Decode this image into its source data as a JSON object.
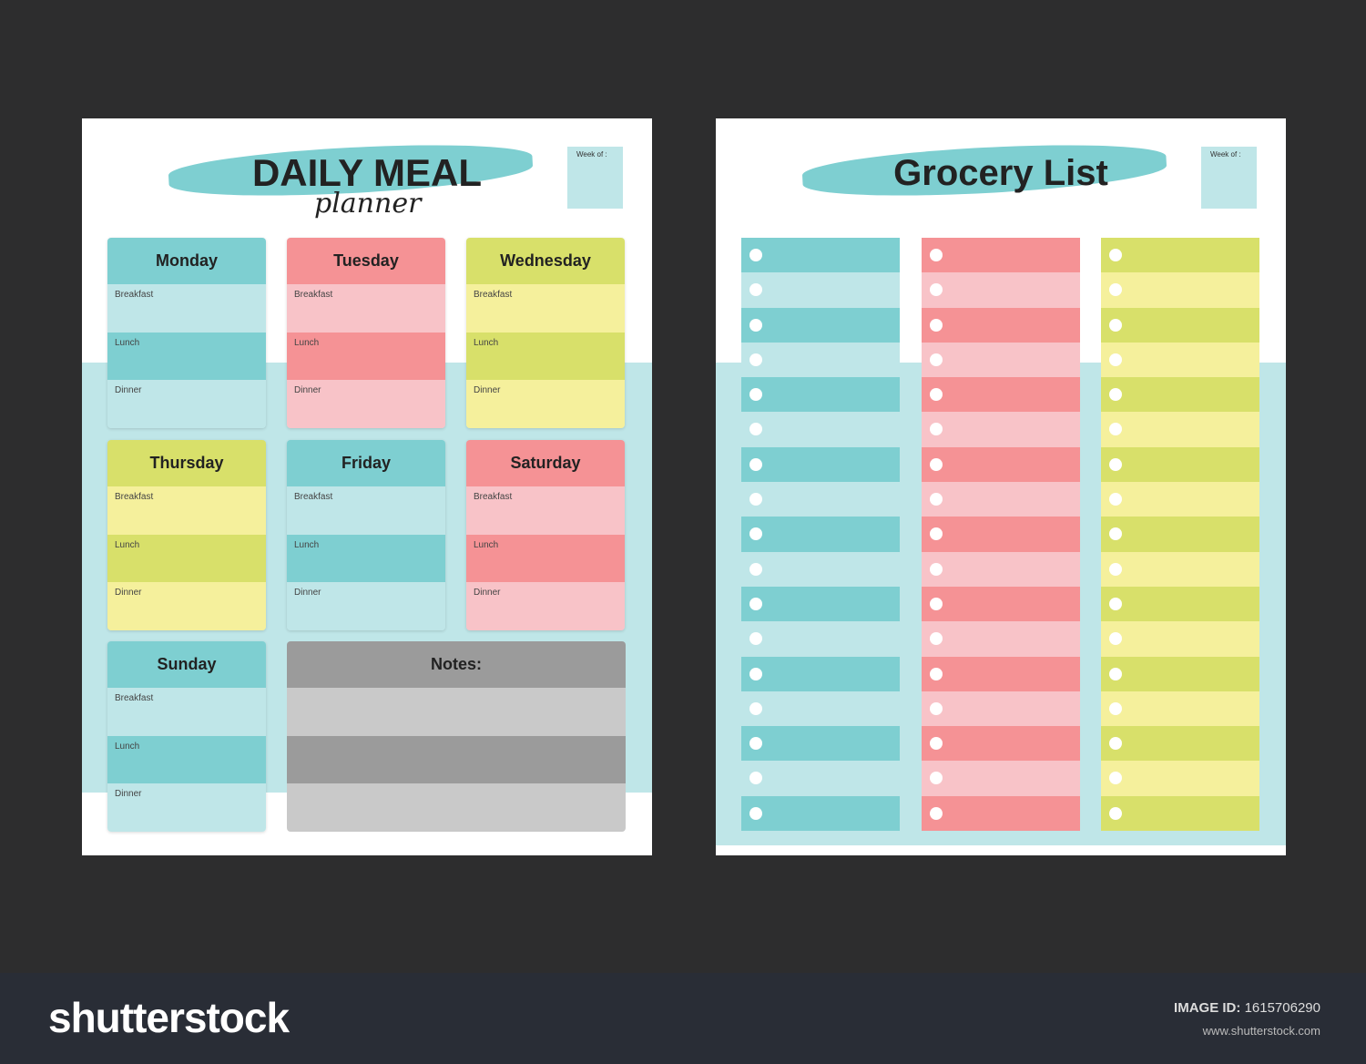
{
  "meal_planner": {
    "title": "DAILY MEAL",
    "subtitle": "planner",
    "week_label": "Week of :",
    "days": [
      {
        "name": "Monday",
        "theme": "teal"
      },
      {
        "name": "Tuesday",
        "theme": "pink"
      },
      {
        "name": "Wednesday",
        "theme": "green"
      },
      {
        "name": "Thursday",
        "theme": "green"
      },
      {
        "name": "Friday",
        "theme": "teal"
      },
      {
        "name": "Saturday",
        "theme": "pink"
      },
      {
        "name": "Sunday",
        "theme": "teal"
      }
    ],
    "meals": [
      "Breakfast",
      "Lunch",
      "Dinner"
    ],
    "notes_label": "Notes:"
  },
  "grocery_list": {
    "title": "Grocery List",
    "week_label": "Week of :",
    "rows_per_column": 17,
    "columns": [
      "teal",
      "pink",
      "green"
    ]
  },
  "colors": {
    "teal": [
      "#7ecfd1",
      "#bfe6e8"
    ],
    "pink": [
      "#f59295",
      "#f8c3c8"
    ],
    "green": [
      "#d8e06a",
      "#f5f09c"
    ],
    "gray": [
      "#9b9b9b",
      "#c9c9c9"
    ]
  },
  "footer": {
    "logo": "shutterstock",
    "image_id_label": "IMAGE ID:",
    "image_id": "1615706290",
    "url": "www.shutterstock.com"
  }
}
